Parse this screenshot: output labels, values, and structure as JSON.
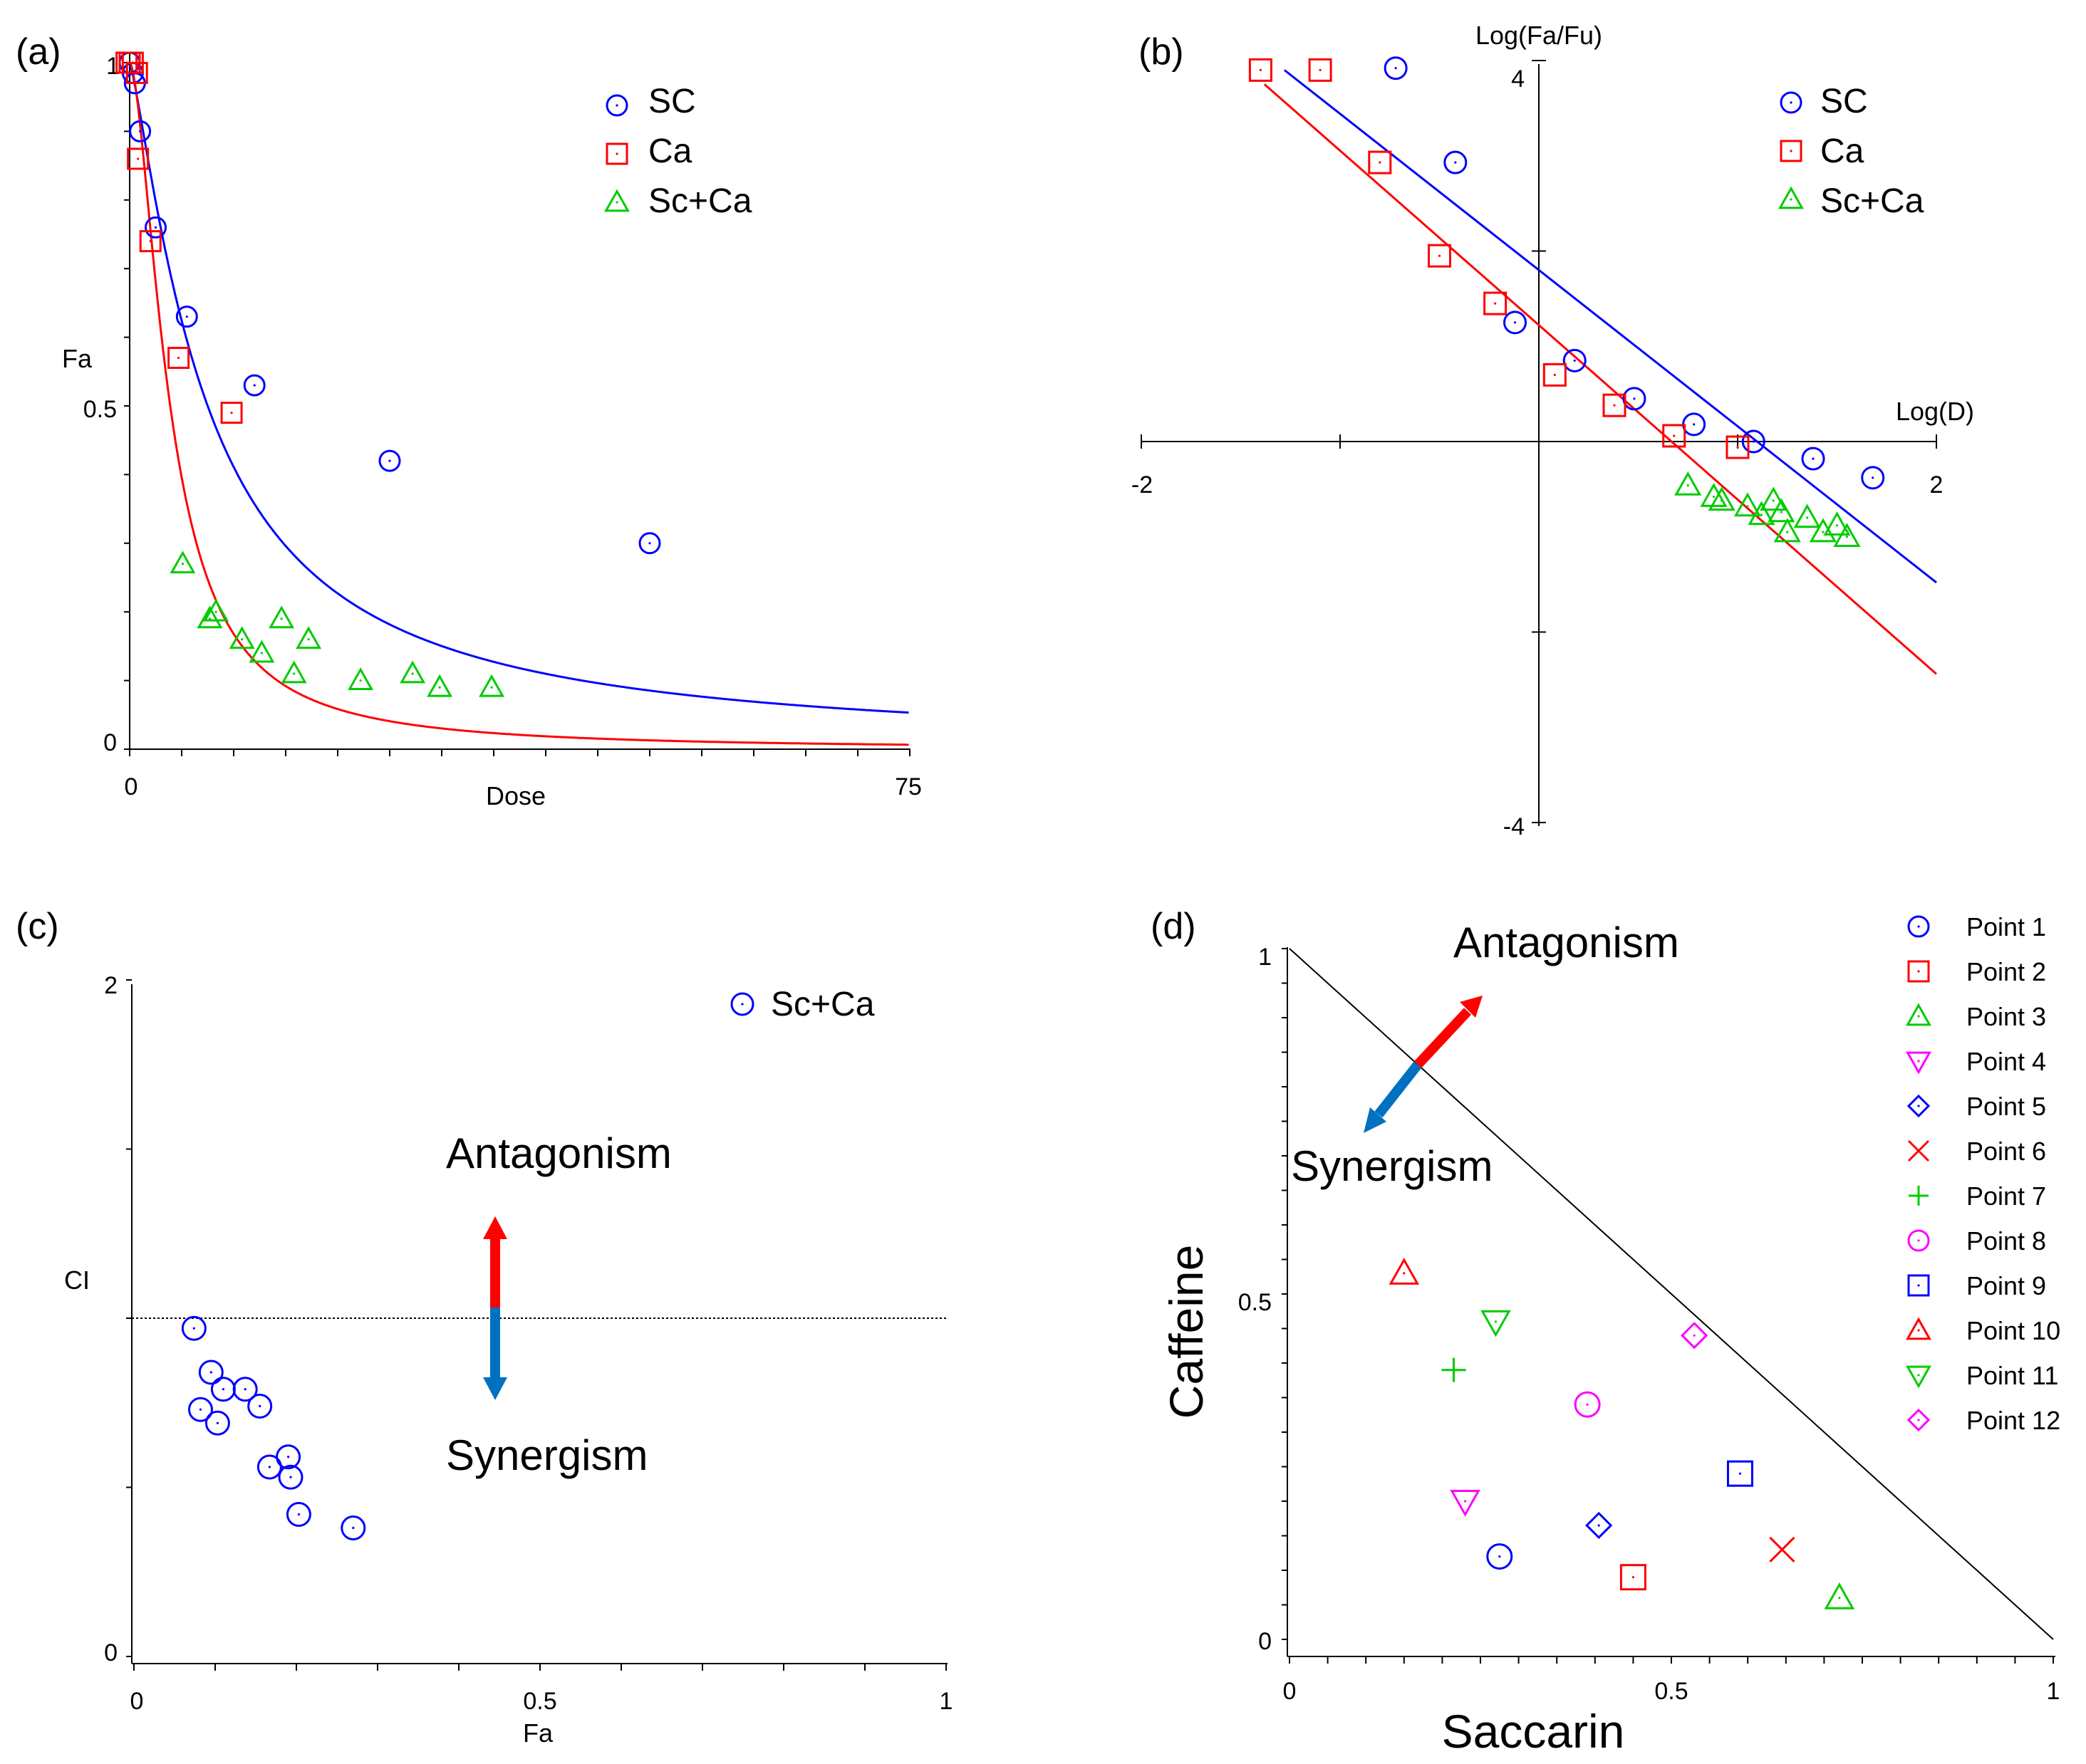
{
  "figure": {
    "panel_labels": [
      "(a)",
      "(b)",
      "(c)",
      "(d)"
    ]
  },
  "chart_data": [
    {
      "id": "a",
      "type": "scatter",
      "title": "(a)",
      "xlabel": "Dose",
      "ylabel": "Fa",
      "xlim": [
        0,
        75
      ],
      "ylim": [
        0,
        1
      ],
      "x_ticks": [
        "0",
        "75"
      ],
      "y_ticks": [
        "0",
        "0.5",
        "1"
      ],
      "legend": {
        "position": "top-right",
        "entries": [
          "SC",
          "Ca",
          "Sc+Ca"
        ]
      },
      "series": [
        {
          "name": "SC",
          "color": "#0000ff",
          "marker": "circle",
          "points": [
            [
              0,
              1.0
            ],
            [
              0.3,
              0.985
            ],
            [
              0.5,
              0.97
            ],
            [
              1,
              0.9
            ],
            [
              2.5,
              0.76
            ],
            [
              5.5,
              0.63
            ],
            [
              12,
              0.53
            ],
            [
              25,
              0.42
            ],
            [
              50,
              0.3
            ]
          ]
        },
        {
          "name": "Ca",
          "color": "#ff0000",
          "marker": "square",
          "points": [
            [
              -0.3,
              1.0
            ],
            [
              0,
              1.0
            ],
            [
              0.3,
              1.0
            ],
            [
              0.7,
              0.985
            ],
            [
              0.8,
              0.86
            ],
            [
              2,
              0.74
            ],
            [
              4.7,
              0.57
            ],
            [
              9.8,
              0.49
            ]
          ]
        },
        {
          "name": "Sc+Ca",
          "color": "#00cc00",
          "marker": "triangle",
          "points": [
            [
              5.1,
              0.27
            ],
            [
              7.7,
              0.19
            ],
            [
              8.3,
              0.2
            ],
            [
              10.8,
              0.16
            ],
            [
              12.7,
              0.14
            ],
            [
              14.6,
              0.19
            ],
            [
              15.8,
              0.11
            ],
            [
              17.2,
              0.16
            ],
            [
              22.2,
              0.1
            ],
            [
              27.2,
              0.11
            ],
            [
              29.8,
              0.09
            ],
            [
              34.8,
              0.09
            ]
          ]
        }
      ],
      "fit_lines": [
        {
          "name": "SC fit",
          "color": "#0000ff",
          "dm": 7.5,
          "m": 1.25
        },
        {
          "name": "Ca fit",
          "color": "#ff0000",
          "dm": 3.9,
          "m": 1.7
        }
      ]
    },
    {
      "id": "b",
      "type": "scatter",
      "title": "(b)",
      "xlabel": "Log(D)",
      "ylabel": "Log(Fa/Fu)",
      "xlim": [
        -2,
        2
      ],
      "ylim": [
        -4,
        4
      ],
      "x_ticks": [
        "-2",
        "2"
      ],
      "y_ticks": [
        "4",
        "-4"
      ],
      "legend": {
        "position": "top-right",
        "entries": [
          "SC",
          "Ca",
          "Sc+Ca"
        ]
      },
      "series": [
        {
          "name": "SC",
          "color": "#0000ff",
          "marker": "circle",
          "points": [
            [
              -0.72,
              3.92
            ],
            [
              -0.42,
              2.93
            ],
            [
              -0.12,
              1.25
            ],
            [
              0.18,
              0.85
            ],
            [
              0.48,
              0.45
            ],
            [
              0.78,
              0.18
            ],
            [
              1.08,
              0.0
            ],
            [
              1.38,
              -0.18
            ],
            [
              1.68,
              -0.38
            ]
          ]
        },
        {
          "name": "Ca",
          "color": "#ff0000",
          "marker": "square",
          "points": [
            [
              -1.4,
              3.9
            ],
            [
              -1.1,
              3.9
            ],
            [
              -0.8,
              2.93
            ],
            [
              -0.5,
              1.95
            ],
            [
              -0.22,
              1.45
            ],
            [
              0.08,
              0.7
            ],
            [
              0.38,
              0.38
            ],
            [
              0.68,
              0.06
            ],
            [
              1.0,
              -0.06
            ]
          ]
        },
        {
          "name": "Sc+Ca",
          "color": "#00cc00",
          "marker": "triangle",
          "points": [
            [
              0.75,
              -0.46
            ],
            [
              0.88,
              -0.58
            ],
            [
              0.92,
              -0.62
            ],
            [
              1.05,
              -0.68
            ],
            [
              1.12,
              -0.77
            ],
            [
              1.18,
              -0.62
            ],
            [
              1.22,
              -0.74
            ],
            [
              1.25,
              -0.95
            ],
            [
              1.35,
              -0.8
            ],
            [
              1.43,
              -0.95
            ],
            [
              1.5,
              -0.88
            ],
            [
              1.55,
              -1.0
            ]
          ]
        }
      ],
      "fit_lines": [
        {
          "name": "SC fit",
          "color": "#0000ff",
          "x": [
            -1.28,
            2.0
          ],
          "y": [
            3.9,
            -1.48
          ]
        },
        {
          "name": "Ca fit",
          "color": "#ff0000",
          "x": [
            -1.38,
            2.0
          ],
          "y": [
            3.75,
            -2.44
          ]
        }
      ]
    },
    {
      "id": "c",
      "type": "scatter",
      "title": "(c)",
      "xlabel": "Fa",
      "ylabel": "CI",
      "xlim": [
        0,
        1
      ],
      "ylim": [
        0,
        2
      ],
      "x_ticks": [
        "0",
        "0.5",
        "1"
      ],
      "y_ticks": [
        "0",
        "2"
      ],
      "reference_line": 1.0,
      "legend": {
        "position": "top-right",
        "entries": [
          "Sc+Ca"
        ]
      },
      "annotations": [
        "Antagonism",
        "Synergism"
      ],
      "series": [
        {
          "name": "Sc+Ca",
          "color": "#0000ff",
          "marker": "circle",
          "points": [
            [
              0.074,
              0.97
            ],
            [
              0.095,
              0.84
            ],
            [
              0.082,
              0.73
            ],
            [
              0.11,
              0.79
            ],
            [
              0.137,
              0.79
            ],
            [
              0.103,
              0.69
            ],
            [
              0.155,
              0.74
            ],
            [
              0.19,
              0.59
            ],
            [
              0.167,
              0.56
            ],
            [
              0.193,
              0.53
            ],
            [
              0.203,
              0.42
            ],
            [
              0.27,
              0.38
            ]
          ]
        }
      ]
    },
    {
      "id": "d",
      "type": "scatter",
      "title": "(d)",
      "xlabel": "Saccarin",
      "ylabel": "Caffeine",
      "xlim": [
        0,
        1
      ],
      "ylim": [
        0,
        1
      ],
      "x_ticks": [
        "0",
        "0.5",
        "1"
      ],
      "y_ticks": [
        "0",
        "0.5",
        "1"
      ],
      "additivity_line": [
        [
          0,
          1
        ],
        [
          1,
          0
        ]
      ],
      "annotations": [
        "Antagonism",
        "Synergism"
      ],
      "legend": {
        "position": "right"
      },
      "series": [
        {
          "name": "Point 1",
          "color": "#0000ff",
          "marker": "circle",
          "points": [
            [
              0.275,
              0.12
            ]
          ]
        },
        {
          "name": "Point 2",
          "color": "#ff0000",
          "marker": "square",
          "points": [
            [
              0.45,
              0.09
            ]
          ]
        },
        {
          "name": "Point 3",
          "color": "#00cc00",
          "marker": "triangle",
          "points": [
            [
              0.72,
              0.06
            ]
          ]
        },
        {
          "name": "Point 4",
          "color": "#ff00ff",
          "marker": "triangle-down",
          "points": [
            [
              0.23,
              0.2
            ]
          ]
        },
        {
          "name": "Point 5",
          "color": "#0000ff",
          "marker": "diamond",
          "points": [
            [
              0.405,
              0.165
            ]
          ]
        },
        {
          "name": "Point 6",
          "color": "#ff0000",
          "marker": "x",
          "points": [
            [
              0.645,
              0.13
            ]
          ]
        },
        {
          "name": "Point 7",
          "color": "#00cc00",
          "marker": "plus",
          "points": [
            [
              0.215,
              0.39
            ]
          ]
        },
        {
          "name": "Point 8",
          "color": "#ff00ff",
          "marker": "circle",
          "points": [
            [
              0.39,
              0.34
            ]
          ]
        },
        {
          "name": "Point 9",
          "color": "#0000ff",
          "marker": "square",
          "points": [
            [
              0.59,
              0.24
            ]
          ]
        },
        {
          "name": "Point 10",
          "color": "#ff0000",
          "marker": "triangle",
          "points": [
            [
              0.15,
              0.53
            ]
          ]
        },
        {
          "name": "Point 11",
          "color": "#00cc00",
          "marker": "triangle-down",
          "points": [
            [
              0.27,
              0.46
            ]
          ]
        },
        {
          "name": "Point 12",
          "color": "#ff00ff",
          "marker": "diamond",
          "points": [
            [
              0.53,
              0.44
            ]
          ]
        }
      ]
    }
  ]
}
